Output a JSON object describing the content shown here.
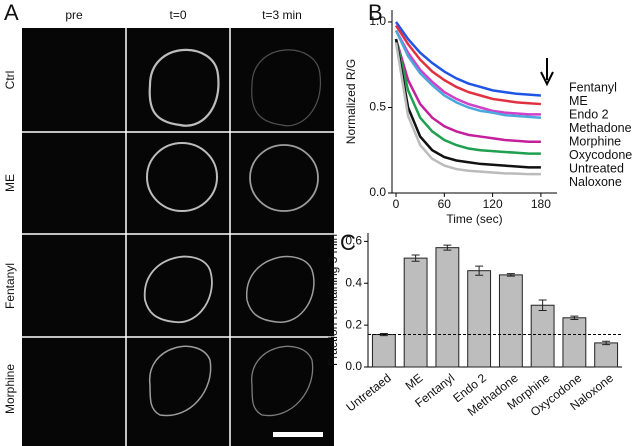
{
  "image_panel": {
    "label": "A",
    "columns": [
      "pre",
      "t=0",
      "t=3 min"
    ],
    "rows": [
      "Ctrl",
      "ME",
      "Fentanyl",
      "Morphine"
    ]
  },
  "chart_data": [
    {
      "type": "line",
      "label": "B",
      "x_label": "Time (sec)",
      "y_label": "Normalized R/G",
      "x": [
        0,
        15,
        30,
        45,
        60,
        75,
        90,
        105,
        120,
        135,
        150,
        165,
        180
      ],
      "xlim": [
        -5,
        200
      ],
      "xticks": [
        0,
        60,
        120,
        180
      ],
      "ylim": [
        0,
        1.07
      ],
      "yticks": [
        {
          "value": 0,
          "label": "0.0"
        },
        0.5,
        {
          "value": 1,
          "label": "1.0"
        }
      ],
      "series": [
        {
          "name": "Fentanyl",
          "color": "#1f55e6",
          "values": [
            1.0,
            0.9,
            0.82,
            0.76,
            0.71,
            0.67,
            0.64,
            0.62,
            0.6,
            0.59,
            0.58,
            0.575,
            0.57
          ]
        },
        {
          "name": "ME",
          "color": "#e23040",
          "values": [
            0.98,
            0.87,
            0.78,
            0.71,
            0.66,
            0.62,
            0.59,
            0.57,
            0.55,
            0.54,
            0.53,
            0.525,
            0.52
          ]
        },
        {
          "name": "Endo 2",
          "color": "#d040c8",
          "values": [
            0.95,
            0.82,
            0.72,
            0.65,
            0.59,
            0.55,
            0.52,
            0.5,
            0.48,
            0.47,
            0.465,
            0.46,
            0.46
          ]
        },
        {
          "name": "Methadone",
          "color": "#4aa8dc",
          "values": [
            0.95,
            0.8,
            0.7,
            0.63,
            0.57,
            0.53,
            0.5,
            0.48,
            0.47,
            0.455,
            0.45,
            0.445,
            0.44
          ]
        },
        {
          "name": "Morphine",
          "color": "#c4209c",
          "values": [
            0.9,
            0.66,
            0.52,
            0.44,
            0.39,
            0.36,
            0.34,
            0.33,
            0.32,
            0.31,
            0.305,
            0.3,
            0.3
          ]
        },
        {
          "name": "Oxycodone",
          "color": "#1ea050",
          "values": [
            0.9,
            0.6,
            0.44,
            0.36,
            0.31,
            0.28,
            0.26,
            0.25,
            0.245,
            0.24,
            0.235,
            0.23,
            0.23
          ]
        },
        {
          "name": "Untreated",
          "color": "#111111",
          "values": [
            0.9,
            0.5,
            0.33,
            0.25,
            0.21,
            0.19,
            0.18,
            0.17,
            0.165,
            0.16,
            0.155,
            0.15,
            0.15
          ]
        },
        {
          "name": "Naloxone",
          "color": "#bbbbbb",
          "values": [
            0.88,
            0.45,
            0.28,
            0.2,
            0.16,
            0.14,
            0.13,
            0.125,
            0.12,
            0.115,
            0.113,
            0.11,
            0.11
          ]
        }
      ]
    },
    {
      "type": "bar",
      "label": "C",
      "y_label": "Fraction remaining 3 min",
      "categories": [
        "Untretaed",
        "ME",
        "Fentanyl",
        "Endo 2",
        "Methadone",
        "Morphine",
        "Oxycodone",
        "Naloxone"
      ],
      "values": [
        0.155,
        0.52,
        0.57,
        0.46,
        0.44,
        0.295,
        0.235,
        0.115
      ],
      "errors": [
        0.005,
        0.015,
        0.012,
        0.022,
        0.006,
        0.025,
        0.008,
        0.008
      ],
      "color": "#bdbdbd",
      "reference_line": 0.155,
      "ylim": [
        0,
        0.64
      ],
      "yticks": [
        {
          "value": 0,
          "label": "0.0"
        },
        0.2,
        0.4,
        0.6
      ]
    }
  ]
}
